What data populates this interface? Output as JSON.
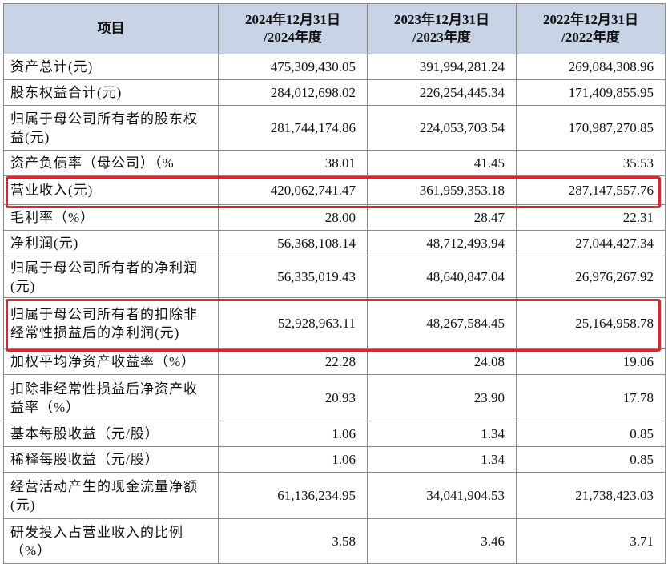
{
  "table": {
    "headers": [
      {
        "col": "项目"
      },
      {
        "line1": "2024年12月31日",
        "line2": "/2024年度"
      },
      {
        "line1": "2023年12月31日",
        "line2": "/2023年度"
      },
      {
        "line1": "2022年12月31日",
        "line2": "/2022年度"
      }
    ],
    "rows": [
      {
        "label": "资产总计(元)",
        "values": [
          "475,309,430.05",
          "391,994,281.24",
          "269,084,308.96"
        ]
      },
      {
        "label": "股东权益合计(元)",
        "values": [
          "284,012,698.02",
          "226,254,445.34",
          "171,409,855.95"
        ]
      },
      {
        "label": "归属于母公司所有者的股东权益(元)",
        "values": [
          "281,744,174.86",
          "224,053,703.54",
          "170,987,270.85"
        ]
      },
      {
        "label": "资产负债率（母公司）（%",
        "values": [
          "38.01",
          "41.45",
          "35.53"
        ]
      },
      {
        "label": "营业收入(元)",
        "values": [
          "420,062,741.47",
          "361,959,353.18",
          "287,147,557.76"
        ],
        "highlight": true
      },
      {
        "label": "毛利率（%）",
        "values": [
          "28.00",
          "28.47",
          "22.31"
        ]
      },
      {
        "label": "净利润(元)",
        "values": [
          "56,368,108.14",
          "48,712,493.94",
          "27,044,427.34"
        ]
      },
      {
        "label": "归属于母公司所有者的净利润(元)",
        "values": [
          "56,335,019.43",
          "48,640,847.04",
          "26,976,267.92"
        ]
      },
      {
        "label": "归属于母公司所有者的扣除非经常性损益后的净利润(元)",
        "values": [
          "52,928,963.11",
          "48,267,584.45",
          "25,164,958.78"
        ],
        "highlight": true
      },
      {
        "label": "加权平均净资产收益率（%）",
        "values": [
          "22.28",
          "24.08",
          "19.06"
        ]
      },
      {
        "label": "扣除非经常性损益后净资产收益率（%）",
        "values": [
          "20.93",
          "23.90",
          "17.78"
        ]
      },
      {
        "label": "基本每股收益（元/股）",
        "values": [
          "1.06",
          "1.34",
          "0.85"
        ]
      },
      {
        "label": "稀释每股收益（元/股）",
        "values": [
          "1.06",
          "1.34",
          "0.85"
        ]
      },
      {
        "label": "经营活动产生的现金流量净额(元)",
        "values": [
          "61,136,234.95",
          "34,041,904.53",
          "21,738,423.03"
        ]
      },
      {
        "label": "研发投入占营业收入的比例（%）",
        "values": [
          "3.58",
          "3.46",
          "3.71"
        ]
      }
    ]
  },
  "colors": {
    "header_bg": "#c9d3e6",
    "highlight_border": "#e0252a",
    "grid_line": "#8a8a8a"
  }
}
